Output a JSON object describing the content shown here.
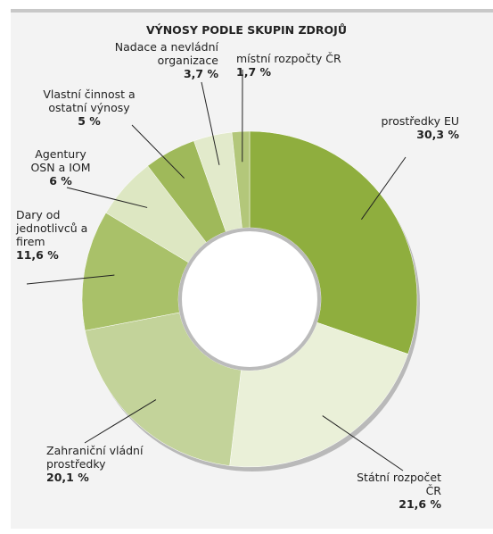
{
  "chart_data": {
    "type": "donut",
    "title": "VÝNOSY PODLE SKUPIN ZDROJŮ",
    "categories": [
      "prostředky EU",
      "Státní rozpočet ČR",
      "Zahraniční vládní prostředky",
      "Dary od jednotlivců a firem",
      "Agentury OSN a IOM",
      "Vlastní činnost a ostatní výnosy",
      "Nadace a nevládní organizace",
      "místní rozpočty ČR"
    ],
    "values": [
      30.3,
      21.6,
      20.1,
      11.6,
      6,
      5,
      3.7,
      1.7
    ],
    "value_labels": [
      "30,3 %",
      "21,6 %",
      "20,1 %",
      "11,6 %",
      "6 %",
      "5 %",
      "3,7 %",
      "1,7 %"
    ],
    "colors": [
      "#8fae3e",
      "#eaf0d8",
      "#c3d39a",
      "#a9c169",
      "#dde7c2",
      "#9fb95a",
      "#e2eacb",
      "#b3c77a"
    ]
  }
}
